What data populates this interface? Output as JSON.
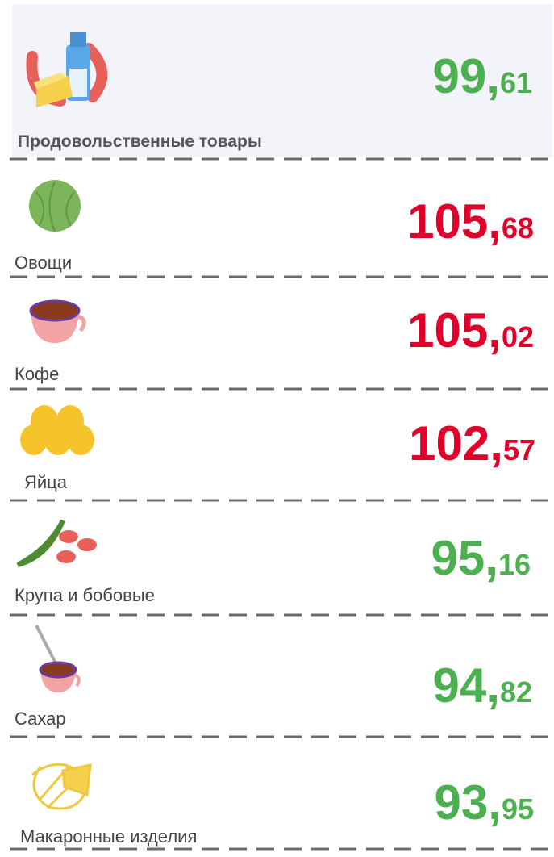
{
  "items": [
    {
      "label": "Продовольственные товары",
      "value_main": "99,",
      "value_decimal": "61",
      "color": "#4caf50"
    },
    {
      "label": "Овощи",
      "value_main": "105,",
      "value_decimal": "68",
      "color": "#e0002a"
    },
    {
      "label": "Кофе",
      "value_main": "105,",
      "value_decimal": "02",
      "color": "#e0002a"
    },
    {
      "label": "Яйца",
      "value_main": "102,",
      "value_decimal": "57",
      "color": "#e0002a"
    },
    {
      "label": "Крупа и бобовые",
      "value_main": "95,",
      "value_decimal": "16",
      "color": "#4caf50"
    },
    {
      "label": "Сахар",
      "value_main": "94,",
      "value_decimal": "82",
      "color": "#4caf50"
    },
    {
      "label": "Макаронные изделия",
      "value_main": "93,",
      "value_decimal": "95",
      "color": "#4caf50"
    }
  ]
}
